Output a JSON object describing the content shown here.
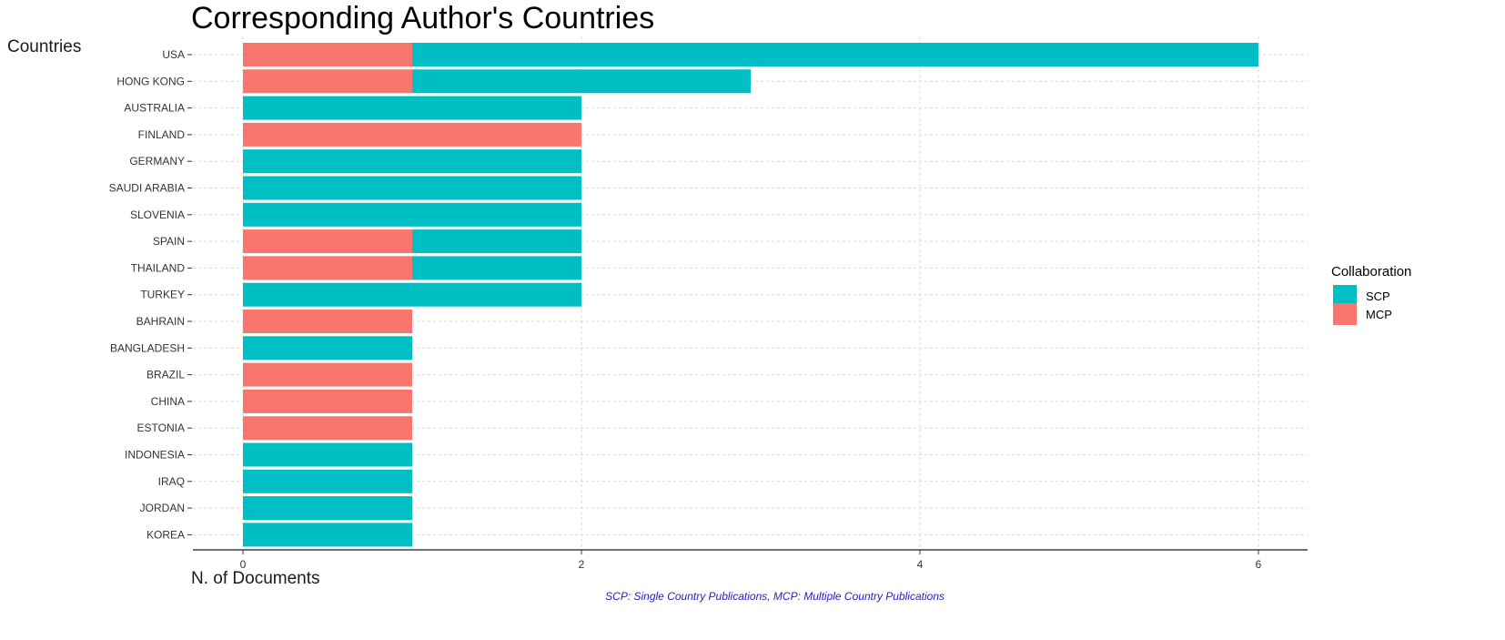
{
  "colors": {
    "SCP": "#00BFC4",
    "MCP": "#F8766D",
    "grid": "#d9d9d9",
    "axis": "#1a1a1a",
    "caption": "#1f1fbf"
  },
  "chart_data": {
    "type": "bar",
    "orientation": "horizontal",
    "stacked": true,
    "title": "Corresponding Author's Countries",
    "xlabel": "N. of Documents",
    "ylabel": "Countries",
    "xlim": [
      0,
      6
    ],
    "x_ticks": [
      "0",
      "2",
      "4",
      "6"
    ],
    "grid": true,
    "legend": {
      "title": "Collaboration",
      "position": "right",
      "entries": [
        "SCP",
        "MCP"
      ]
    },
    "caption": "SCP: Single Country Publications, MCP: Multiple Country Publications",
    "categories": [
      "USA",
      "HONG KONG",
      "AUSTRALIA",
      "FINLAND",
      "GERMANY",
      "SAUDI ARABIA",
      "SLOVENIA",
      "SPAIN",
      "THAILAND",
      "TURKEY",
      "BAHRAIN",
      "BANGLADESH",
      "BRAZIL",
      "CHINA",
      "ESTONIA",
      "INDONESIA",
      "IRAQ",
      "JORDAN",
      "KOREA"
    ],
    "series": [
      {
        "name": "MCP",
        "values": [
          1,
          1,
          0,
          2,
          0,
          0,
          0,
          1,
          1,
          0,
          1,
          0,
          1,
          1,
          1,
          0,
          0,
          0,
          0
        ]
      },
      {
        "name": "SCP",
        "values": [
          5,
          2,
          2,
          0,
          2,
          2,
          2,
          1,
          1,
          2,
          0,
          1,
          0,
          0,
          0,
          1,
          1,
          1,
          1
        ]
      }
    ]
  }
}
